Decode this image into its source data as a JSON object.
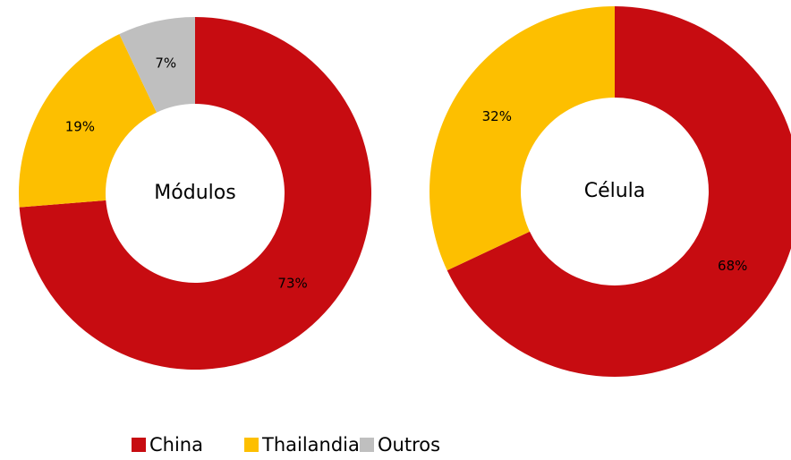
{
  "chart_data": [
    {
      "type": "donut",
      "title": "Módulos",
      "categories": [
        "China",
        "Thailandia",
        "Outros"
      ],
      "values": [
        73,
        19,
        7
      ],
      "value_labels": [
        "73%",
        "19%",
        "7%"
      ],
      "colors": [
        "#c70c11",
        "#fdbf00",
        "#bfbfbf"
      ]
    },
    {
      "type": "donut",
      "title": "Célula",
      "categories": [
        "China",
        "Thailandia"
      ],
      "values": [
        68,
        32
      ],
      "value_labels": [
        "68%",
        "32%"
      ],
      "colors": [
        "#c70c11",
        "#fdbf00"
      ]
    }
  ]
}
